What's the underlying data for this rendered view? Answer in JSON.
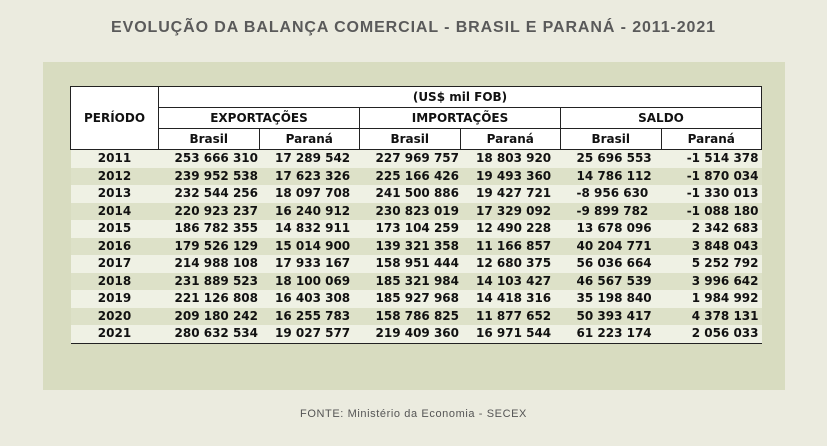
{
  "title": "EVOLUÇÃO DA BALANÇA COMERCIAL - BRASIL E PARANÁ - 2011-2021",
  "source": "FONTE: Ministério da Economia - SECEX",
  "table": {
    "unit": "(US$ mil FOB)",
    "period_header": "PERÍODO",
    "groups": [
      "EXPORTAÇÕES",
      "IMPORTAÇÕES",
      "SALDO"
    ],
    "subheaders": [
      "Brasil",
      "Paraná",
      "Brasil",
      "Paraná",
      "Brasil",
      "Paraná"
    ],
    "rows": [
      {
        "year": "2011",
        "exp_br": "253 666 310",
        "exp_pr": "17 289 542",
        "imp_br": "227 969 757",
        "imp_pr": "18 803 920",
        "sal_br": "25 696 553",
        "sal_pr": "-1 514 378"
      },
      {
        "year": "2012",
        "exp_br": "239 952 538",
        "exp_pr": "17 623 326",
        "imp_br": "225 166 426",
        "imp_pr": "19 493 360",
        "sal_br": "14 786 112",
        "sal_pr": "-1 870 034"
      },
      {
        "year": "2013",
        "exp_br": "232 544 256",
        "exp_pr": "18 097 708",
        "imp_br": "241 500 886",
        "imp_pr": "19 427 721",
        "sal_br": "-8 956 630",
        "sal_pr": "-1 330 013"
      },
      {
        "year": "2014",
        "exp_br": "220 923 237",
        "exp_pr": "16 240 912",
        "imp_br": "230 823 019",
        "imp_pr": "17 329 092",
        "sal_br": "-9 899 782",
        "sal_pr": "-1 088 180"
      },
      {
        "year": "2015",
        "exp_br": "186 782 355",
        "exp_pr": "14 832 911",
        "imp_br": "173 104 259",
        "imp_pr": "12 490 228",
        "sal_br": "13 678 096",
        "sal_pr": "2 342 683"
      },
      {
        "year": "2016",
        "exp_br": "179 526 129",
        "exp_pr": "15 014 900",
        "imp_br": "139 321 358",
        "imp_pr": "11 166 857",
        "sal_br": "40 204 771",
        "sal_pr": "3 848 043"
      },
      {
        "year": "2017",
        "exp_br": "214 988 108",
        "exp_pr": "17 933 167",
        "imp_br": "158 951 444",
        "imp_pr": "12 680 375",
        "sal_br": "56 036 664",
        "sal_pr": "5 252 792"
      },
      {
        "year": "2018",
        "exp_br": "231 889 523",
        "exp_pr": "18 100 069",
        "imp_br": "185 321 984",
        "imp_pr": "14 103 427",
        "sal_br": "46 567 539",
        "sal_pr": "3 996 642"
      },
      {
        "year": "2019",
        "exp_br": "221 126 808",
        "exp_pr": "16 403 308",
        "imp_br": "185 927 968",
        "imp_pr": "14 418 316",
        "sal_br": "35 198 840",
        "sal_pr": "1 984 992"
      },
      {
        "year": "2020",
        "exp_br": "209 180 242",
        "exp_pr": "16 255 783",
        "imp_br": "158 786 825",
        "imp_pr": "11 877 652",
        "sal_br": "50 393 417",
        "sal_pr": "4 378 131"
      },
      {
        "year": "2021",
        "exp_br": "280 632 534",
        "exp_pr": "19 027 577",
        "imp_br": "219 409 360",
        "imp_pr": "16 971 544",
        "sal_br": "61 223 174",
        "sal_pr": "2 056 033"
      }
    ]
  }
}
